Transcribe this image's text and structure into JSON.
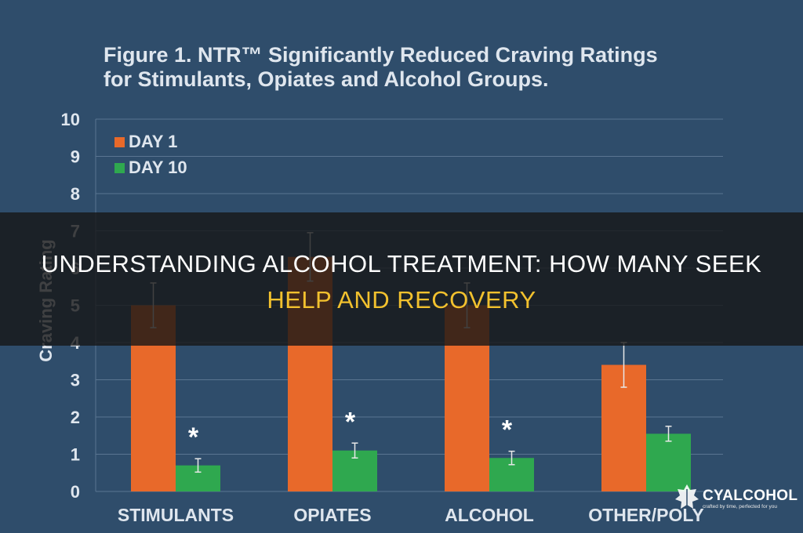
{
  "figure": {
    "title_line1": "Figure 1.  NTR™ Significantly Reduced Craving Ratings",
    "title_line2": "for Stimulants, Opiates and Alcohol Groups."
  },
  "overlay": {
    "title_line1": "UNDERSTANDING ALCOHOL TREATMENT: HOW MANY SEEK",
    "title_line2": "HELP AND RECOVERY",
    "band_color": "#161616",
    "line1_color": "#ffffff",
    "line2_color": "#f2c12e"
  },
  "watermark": {
    "name": "CYALCOHOL",
    "tagline": "crafted by time, perfected for you",
    "icon": "grape-leaf-icon"
  },
  "chart_data": {
    "type": "bar",
    "title": "Figure 1.  NTR™ Significantly Reduced Craving Ratings for Stimulants, Opiates and Alcohol Groups.",
    "xlabel": "",
    "ylabel": "Craving Rating",
    "ylim": [
      0,
      10
    ],
    "yticks": [
      0,
      1,
      2,
      3,
      4,
      5,
      6,
      7,
      8,
      9,
      10
    ],
    "grid": true,
    "legend_position": "top-left",
    "categories": [
      "STIMULANTS",
      "OPIATES",
      "ALCOHOL",
      "OTHER/POLY"
    ],
    "series": [
      {
        "name": "DAY 1",
        "color": "#e8692a",
        "values": [
          5.0,
          6.3,
          5.0,
          3.4
        ],
        "error": [
          0.6,
          0.65,
          0.6,
          0.6
        ]
      },
      {
        "name": "DAY 10",
        "color": "#2fa84f",
        "values": [
          0.7,
          1.1,
          0.9,
          1.55
        ],
        "error": [
          0.18,
          0.2,
          0.18,
          0.2
        ]
      }
    ],
    "annotations": [
      {
        "text": "*",
        "category": "STIMULANTS",
        "series": "DAY 10"
      },
      {
        "text": "*",
        "category": "OPIATES",
        "series": "DAY 10"
      },
      {
        "text": "*",
        "category": "ALCOHOL",
        "series": "DAY 10"
      }
    ],
    "colors": {
      "background": "#2f4d6b",
      "text": "#dfe6ee",
      "grid": "#5a7591",
      "error_bar": "#e8e8e8"
    }
  }
}
